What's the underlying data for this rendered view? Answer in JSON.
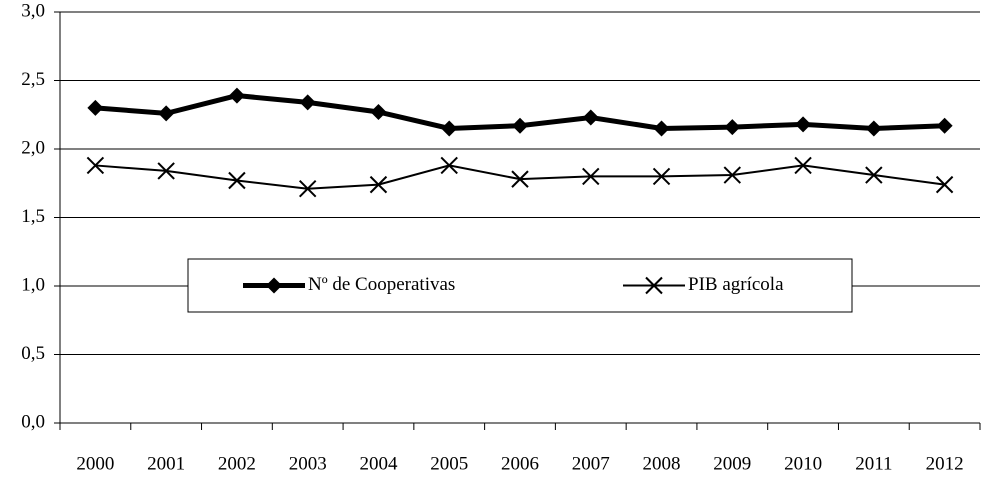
{
  "chart_data": {
    "type": "line",
    "categories": [
      "2000",
      "2001",
      "2002",
      "2003",
      "2004",
      "2005",
      "2006",
      "2007",
      "2008",
      "2009",
      "2010",
      "2011",
      "2012"
    ],
    "series": [
      {
        "name": "Nº de Cooperativas",
        "color": "#000000",
        "marker": "diamond",
        "width": 5,
        "values": [
          2.3,
          2.26,
          2.39,
          2.34,
          2.27,
          2.15,
          2.17,
          2.23,
          2.15,
          2.16,
          2.18,
          2.15,
          2.17
        ]
      },
      {
        "name": "PIB agrícola",
        "color": "#000000",
        "marker": "x",
        "width": 2,
        "values": [
          1.88,
          1.84,
          1.77,
          1.71,
          1.74,
          1.88,
          1.78,
          1.8,
          1.8,
          1.81,
          1.88,
          1.81,
          1.74
        ]
      }
    ],
    "ylim": [
      0,
      3
    ],
    "yticks": [
      {
        "value": 0,
        "label": "0,0"
      },
      {
        "value": 0.5,
        "label": "0,5"
      },
      {
        "value": 1,
        "label": "1,0"
      },
      {
        "value": 1.5,
        "label": "1,5"
      },
      {
        "value": 2,
        "label": "2,0"
      },
      {
        "value": 2.5,
        "label": "2,5"
      },
      {
        "value": 3,
        "label": "3,0"
      }
    ],
    "grid": true,
    "legend": "center"
  }
}
